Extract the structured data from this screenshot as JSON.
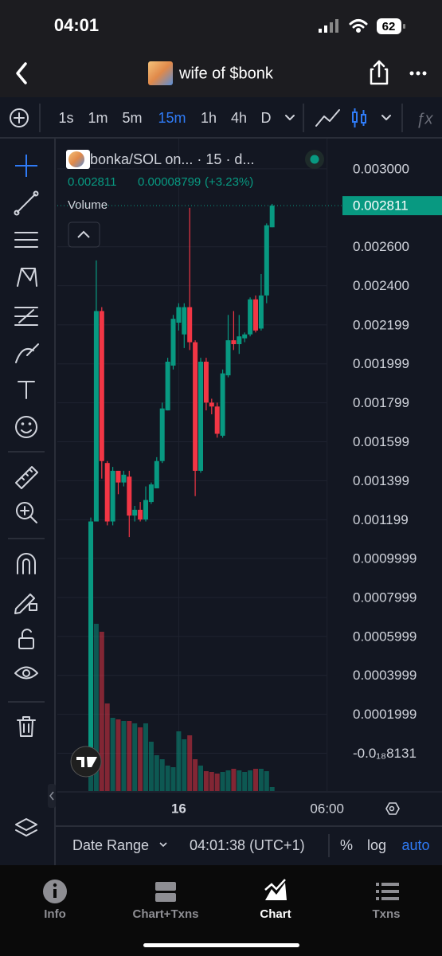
{
  "status_bar": {
    "time": "04:01",
    "battery": "62"
  },
  "header": {
    "title": "wife of $bonk"
  },
  "timeframes": [
    "1s",
    "1m",
    "5m",
    "15m",
    "1h",
    "4h",
    "D"
  ],
  "indicators_icon": "ƒx",
  "bottom_bar": {
    "date_range": "Date Range",
    "clock": "04:01:38 (UTC+1)",
    "percent": "%",
    "log": "log",
    "auto": "auto"
  },
  "nav": [
    "Info",
    "Chart+Txns",
    "Chart",
    "Txns"
  ],
  "chart_data": {
    "type": "candlestick",
    "legend_title": "bonka/SOL on... · 15 · d...",
    "last_price": 0.002811,
    "change": 8.799e-05,
    "change_text": "(+3.23%)",
    "volume_label": "Volume",
    "categories": [
      null,
      null,
      null,
      null,
      null,
      null,
      null,
      null,
      null,
      null,
      null,
      null,
      null,
      null,
      null,
      null,
      "16",
      null,
      null,
      null,
      null,
      null,
      null,
      null,
      null,
      null,
      null,
      null,
      null,
      null,
      null,
      null,
      null,
      null,
      null,
      null,
      null,
      null,
      null,
      null,
      null,
      null,
      null,
      "06:00"
    ],
    "open": [
      1e-05,
      0.00119,
      0.00227,
      0.00149,
      0.00119,
      0.00145,
      0.00139,
      0.00142,
      0.00122,
      0.00125,
      0.0012,
      0.00129,
      0.00136,
      0.0015,
      0.00176,
      0.00199,
      0.00221,
      0.00215,
      0.00229,
      0.00211,
      0.00145,
      0.00201,
      0.0018,
      0.00178,
      0.00163,
      0.00194,
      0.00212,
      0.0021,
      0.00213,
      0.00215,
      0.00233,
      0.00218,
      0.00235,
      0.0027,
      null,
      null,
      null,
      null,
      null,
      null,
      null,
      null,
      null,
      null
    ],
    "high": [
      0.00121,
      0.00253,
      0.00229,
      0.0015,
      0.00147,
      0.00145,
      0.00145,
      0.00145,
      0.00127,
      0.00129,
      0.00137,
      0.00139,
      0.00152,
      0.0018,
      0.00203,
      0.00225,
      0.00231,
      0.00231,
      0.0028,
      0.00212,
      0.00203,
      0.00203,
      0.00182,
      0.0018,
      0.00197,
      0.00225,
      0.00227,
      0.00225,
      0.00216,
      0.00234,
      0.00235,
      0.00246,
      0.00272,
      0.00282,
      null,
      null,
      null,
      null,
      null,
      null,
      null,
      null,
      null,
      null
    ],
    "low": [
      0,
      0.00119,
      0.00141,
      0.00117,
      0.00117,
      0.00133,
      0.00137,
      0.00111,
      0.00119,
      0.00119,
      0.00119,
      0.00128,
      0.00136,
      0.00149,
      0.00176,
      0.00197,
      0.00217,
      0.00208,
      0.00207,
      0.00132,
      0.00144,
      0.00176,
      0.00174,
      0.00162,
      0.00162,
      0.00193,
      0.00207,
      0.00205,
      0.00211,
      0.00214,
      0.00216,
      0.00217,
      0.00231,
      0.0027,
      null,
      null,
      null,
      null,
      null,
      null,
      null,
      null,
      null,
      null
    ],
    "close": [
      0.00119,
      0.00227,
      0.0015,
      0.00119,
      0.00145,
      0.00139,
      0.00143,
      0.00122,
      0.00125,
      0.0012,
      0.0013,
      0.00138,
      0.0015,
      0.00177,
      0.00201,
      0.00223,
      0.00229,
      0.00229,
      0.00211,
      0.00145,
      0.00201,
      0.0018,
      0.00178,
      0.00164,
      0.00195,
      0.00212,
      0.0021,
      0.00214,
      0.00215,
      0.00233,
      0.00217,
      0.00235,
      0.00271,
      0.002811,
      null,
      null,
      null,
      null,
      null,
      null,
      null,
      null,
      null,
      null
    ],
    "volume": [
      80,
      210,
      200,
      110,
      92,
      90,
      88,
      88,
      85,
      80,
      85,
      62,
      45,
      40,
      32,
      30,
      75,
      65,
      70,
      40,
      32,
      25,
      24,
      22,
      24,
      26,
      28,
      26,
      24,
      26,
      28,
      28,
      25,
      5,
      null,
      null,
      null,
      null,
      null,
      null,
      null,
      null,
      null,
      null
    ],
    "volume_ylim": [
      0,
      230
    ],
    "up_color": "#089981",
    "down_color": "#f23645",
    "ylim": [
      -0.000194,
      0.003155
    ],
    "yticks": [
      {
        "value": 0.003,
        "label": "0.003000"
      },
      {
        "value": 0.0026,
        "label": "0.002600"
      },
      {
        "value": 0.0024,
        "label": "0.002400"
      },
      0.002199,
      0.001999,
      0.001799,
      0.001599,
      0.001399,
      0.001199,
      0.0009999,
      0.0007999,
      0.0005999,
      0.0003999,
      0.0001999,
      {
        "value": -8.131e-22,
        "label": "-0.0₁₈8131"
      }
    ],
    "grid": true
  }
}
